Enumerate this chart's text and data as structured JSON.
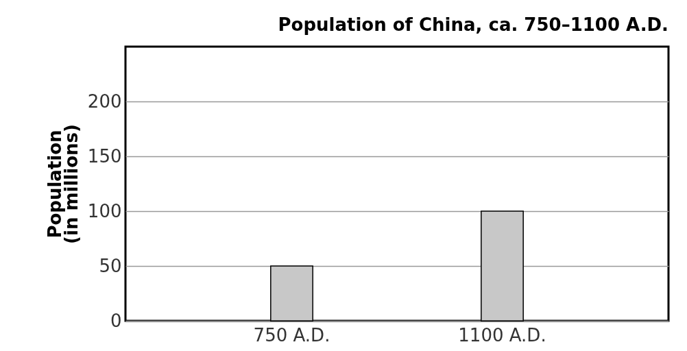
{
  "chart_data": {
    "type": "bar",
    "title": "Population of China, ca. 750–1100 A.D.",
    "ylabel": "Population\n(in millions)",
    "categories": [
      "750 A.D.",
      "1100 A.D."
    ],
    "values": [
      50,
      100
    ],
    "color": "#c8c8c8",
    "ylim": [
      0,
      250
    ],
    "yticks": [
      0,
      50,
      100,
      150,
      200
    ],
    "grid": "y"
  }
}
